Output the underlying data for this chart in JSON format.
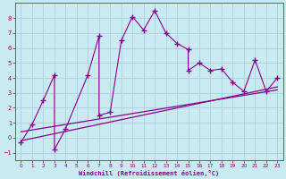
{
  "xlabel": "Windchill (Refroidissement éolien,°C)",
  "bg_color": "#c8eaf0",
  "grid_color": "#a8d0dc",
  "line_color": "#8b008b",
  "spine_color": "#9040a0",
  "xlim": [
    -0.5,
    23.5
  ],
  "ylim": [
    -1.5,
    9.0
  ],
  "yticks": [
    -1,
    0,
    1,
    2,
    3,
    4,
    5,
    6,
    7,
    8
  ],
  "xticks": [
    0,
    1,
    2,
    3,
    4,
    5,
    6,
    7,
    8,
    9,
    10,
    11,
    12,
    13,
    14,
    15,
    16,
    17,
    18,
    19,
    20,
    21,
    22,
    23
  ],
  "scatter_x": [
    0,
    1,
    2,
    3,
    3,
    4,
    6,
    7,
    7,
    8,
    9,
    10,
    11,
    12,
    13,
    14,
    15,
    15,
    16,
    17,
    18,
    19,
    20,
    21,
    22,
    23
  ],
  "scatter_y": [
    -0.3,
    0.9,
    2.5,
    4.2,
    -0.8,
    0.6,
    4.2,
    6.8,
    1.5,
    1.7,
    6.5,
    8.1,
    7.2,
    8.5,
    7.0,
    6.3,
    5.9,
    4.5,
    5.0,
    4.5,
    4.6,
    3.7,
    3.1,
    5.2,
    3.1,
    4.0
  ],
  "reg_line1_x": [
    0,
    23
  ],
  "reg_line1_y": [
    -0.2,
    3.4
  ],
  "reg_line2_x": [
    0,
    23
  ],
  "reg_line2_y": [
    0.4,
    3.2
  ]
}
